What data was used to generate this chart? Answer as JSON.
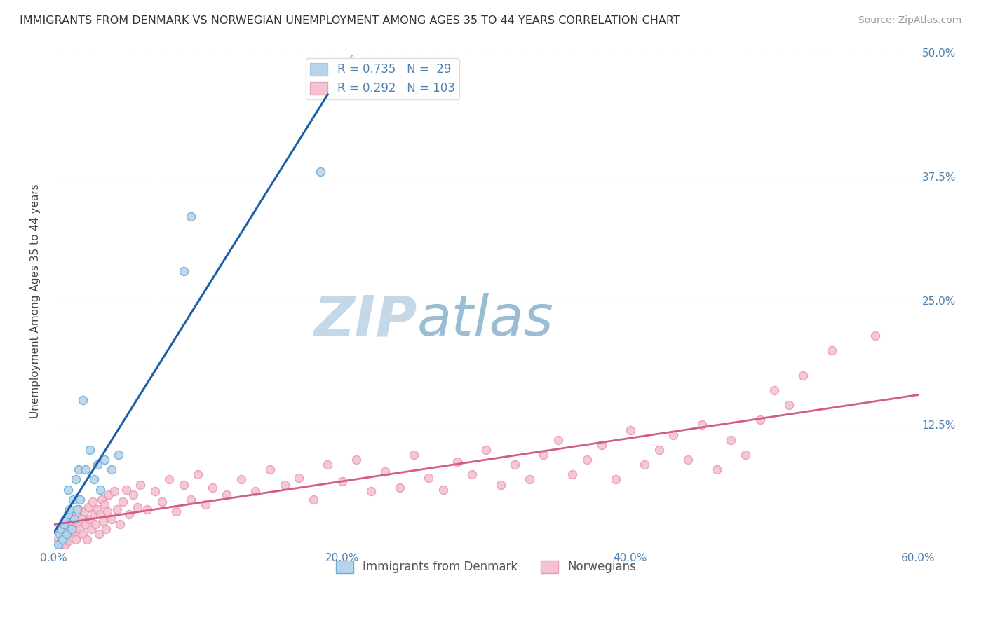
{
  "title": "IMMIGRANTS FROM DENMARK VS NORWEGIAN UNEMPLOYMENT AMONG AGES 35 TO 44 YEARS CORRELATION CHART",
  "source": "Source: ZipAtlas.com",
  "ylabel": "Unemployment Among Ages 35 to 44 years",
  "legend_label1": "Immigrants from Denmark",
  "legend_label2": "Norwegians",
  "r1": 0.735,
  "n1": 29,
  "r2": 0.292,
  "n2": 103,
  "xlim": [
    0.0,
    0.6
  ],
  "ylim": [
    0.0,
    0.5
  ],
  "color_blue_fill": "#b8d4ed",
  "color_blue_edge": "#6aaed6",
  "color_pink_fill": "#f4c2d0",
  "color_pink_edge": "#e899b4",
  "color_line_blue": "#1a5fa8",
  "color_line_blue_dash": "#8ab4d8",
  "color_line_pink": "#d45c80",
  "watermark_zip_color": "#c5d8e8",
  "watermark_atlas_color": "#9bbdd4",
  "grid_color": "#d8dfe8",
  "tick_color": "#5080b0",
  "blue_x": [
    0.003,
    0.004,
    0.005,
    0.006,
    0.007,
    0.008,
    0.009,
    0.01,
    0.01,
    0.011,
    0.012,
    0.013,
    0.014,
    0.015,
    0.016,
    0.017,
    0.018,
    0.02,
    0.022,
    0.025,
    0.028,
    0.03,
    0.032,
    0.035,
    0.04,
    0.045,
    0.09,
    0.095,
    0.185
  ],
  "blue_y": [
    0.005,
    0.015,
    0.02,
    0.01,
    0.025,
    0.03,
    0.015,
    0.035,
    0.06,
    0.04,
    0.02,
    0.05,
    0.03,
    0.07,
    0.04,
    0.08,
    0.05,
    0.15,
    0.08,
    0.1,
    0.07,
    0.085,
    0.06,
    0.09,
    0.08,
    0.095,
    0.28,
    0.335,
    0.38
  ],
  "pink_x": [
    0.003,
    0.004,
    0.005,
    0.005,
    0.006,
    0.007,
    0.008,
    0.008,
    0.009,
    0.01,
    0.01,
    0.011,
    0.012,
    0.013,
    0.014,
    0.015,
    0.015,
    0.016,
    0.017,
    0.018,
    0.019,
    0.02,
    0.021,
    0.022,
    0.023,
    0.024,
    0.025,
    0.026,
    0.027,
    0.028,
    0.029,
    0.03,
    0.031,
    0.032,
    0.033,
    0.034,
    0.035,
    0.036,
    0.037,
    0.038,
    0.04,
    0.042,
    0.044,
    0.046,
    0.048,
    0.05,
    0.052,
    0.055,
    0.058,
    0.06,
    0.065,
    0.07,
    0.075,
    0.08,
    0.085,
    0.09,
    0.095,
    0.1,
    0.105,
    0.11,
    0.12,
    0.13,
    0.14,
    0.15,
    0.16,
    0.17,
    0.18,
    0.19,
    0.2,
    0.21,
    0.22,
    0.23,
    0.24,
    0.25,
    0.26,
    0.27,
    0.28,
    0.29,
    0.3,
    0.31,
    0.32,
    0.33,
    0.34,
    0.35,
    0.36,
    0.37,
    0.38,
    0.39,
    0.4,
    0.41,
    0.42,
    0.43,
    0.44,
    0.45,
    0.46,
    0.47,
    0.48,
    0.49,
    0.5,
    0.51,
    0.52,
    0.54,
    0.57
  ],
  "pink_y": [
    0.01,
    0.005,
    0.02,
    0.008,
    0.015,
    0.01,
    0.025,
    0.005,
    0.018,
    0.03,
    0.008,
    0.022,
    0.012,
    0.028,
    0.018,
    0.035,
    0.01,
    0.025,
    0.04,
    0.02,
    0.03,
    0.015,
    0.038,
    0.025,
    0.01,
    0.042,
    0.03,
    0.02,
    0.048,
    0.035,
    0.025,
    0.04,
    0.015,
    0.035,
    0.05,
    0.028,
    0.045,
    0.02,
    0.038,
    0.055,
    0.03,
    0.058,
    0.04,
    0.025,
    0.048,
    0.06,
    0.035,
    0.055,
    0.042,
    0.065,
    0.04,
    0.058,
    0.048,
    0.07,
    0.038,
    0.065,
    0.05,
    0.075,
    0.045,
    0.062,
    0.055,
    0.07,
    0.058,
    0.08,
    0.065,
    0.072,
    0.05,
    0.085,
    0.068,
    0.09,
    0.058,
    0.078,
    0.062,
    0.095,
    0.072,
    0.06,
    0.088,
    0.075,
    0.1,
    0.065,
    0.085,
    0.07,
    0.095,
    0.11,
    0.075,
    0.09,
    0.105,
    0.07,
    0.12,
    0.085,
    0.1,
    0.115,
    0.09,
    0.125,
    0.08,
    0.11,
    0.095,
    0.13,
    0.16,
    0.145,
    0.175,
    0.2,
    0.215
  ]
}
